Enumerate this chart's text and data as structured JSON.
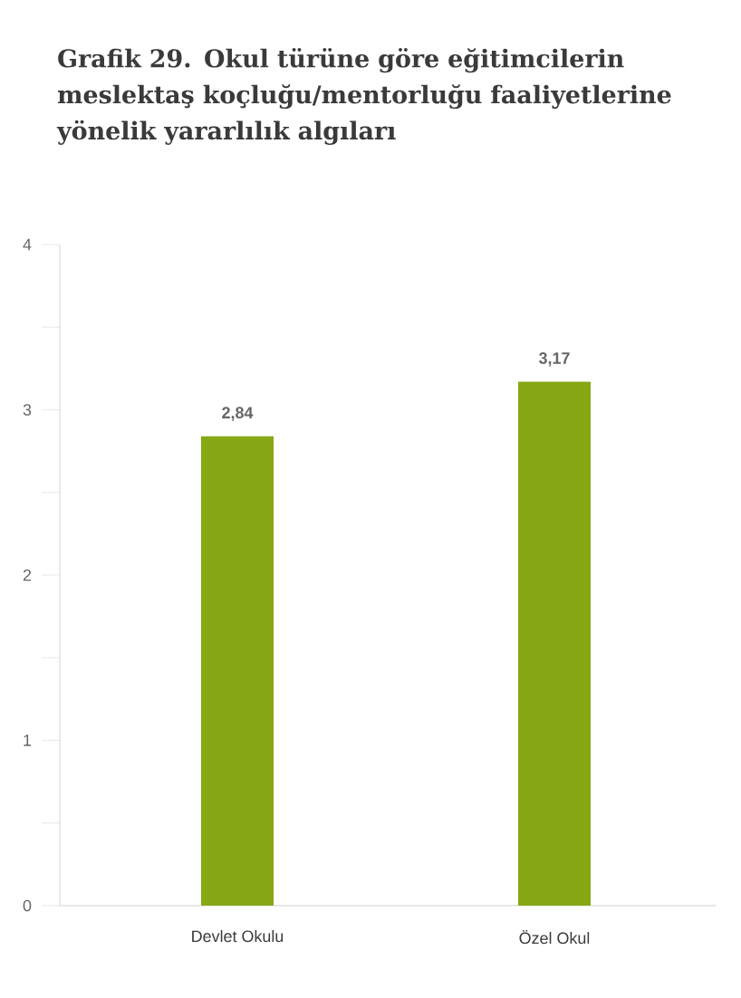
{
  "chart_data": {
    "type": "bar",
    "title": "Grafik 29. Okul türüne göre eğitimcilerin meslektaş koçluğu/mentorluğu faaliyetlerine yönelik yararlılık algıları",
    "categories": [
      "Devlet Okulu",
      "Özel Okul"
    ],
    "values": [
      2.84,
      3.17
    ],
    "value_labels": [
      "2,84",
      "3,17"
    ],
    "color": "#86a814",
    "ylim": [
      0,
      4
    ],
    "yticks": [
      0,
      {
        "value": 0.5,
        "label": null
      },
      1,
      {
        "value": 1.5,
        "label": null
      },
      2,
      {
        "value": 2.5,
        "label": null
      },
      3,
      {
        "value": 3.5,
        "label": null
      },
      4
    ],
    "grid": false
  }
}
